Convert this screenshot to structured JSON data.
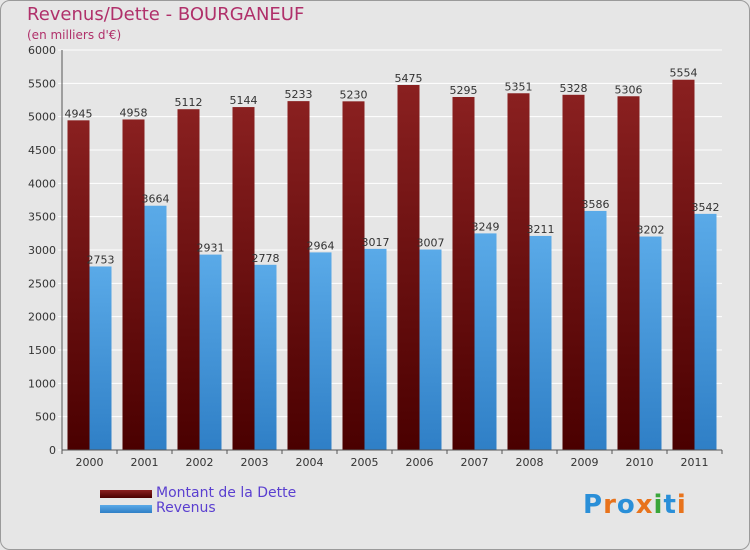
{
  "title": "Revenus/Dette - BOURGANEUF",
  "subtitle": "(en milliers d'€)",
  "chart_data": {
    "type": "bar",
    "categories": [
      "2000",
      "2001",
      "2002",
      "2003",
      "2004",
      "2005",
      "2006",
      "2007",
      "2008",
      "2009",
      "2010",
      "2011"
    ],
    "series": [
      {
        "name": "Montant de la Dette",
        "color": "#6b1010",
        "values": [
          4945,
          4958,
          5112,
          5144,
          5233,
          5230,
          5475,
          5295,
          5351,
          5328,
          5306,
          5554
        ]
      },
      {
        "name": "Revenus",
        "color": "#3d8fd6",
        "values": [
          2753,
          3664,
          2931,
          2778,
          2964,
          3017,
          3007,
          3249,
          3211,
          3586,
          3202,
          3542
        ]
      }
    ],
    "ylim": [
      0,
      6000
    ],
    "yticks": [
      "0",
      "500",
      "1000",
      "1500",
      "2000",
      "2500",
      "3000",
      "3500",
      "4000",
      "4500",
      "5000",
      "5500",
      "6000"
    ],
    "grid": true,
    "legend": "bottom-left"
  },
  "logo": {
    "text": "Proxiti",
    "colors": [
      "#2a8fd8",
      "#e8731c",
      "#2a8fd8",
      "#e8731c",
      "#3aa63a",
      "#2a8fd8",
      "#e8731c"
    ]
  }
}
